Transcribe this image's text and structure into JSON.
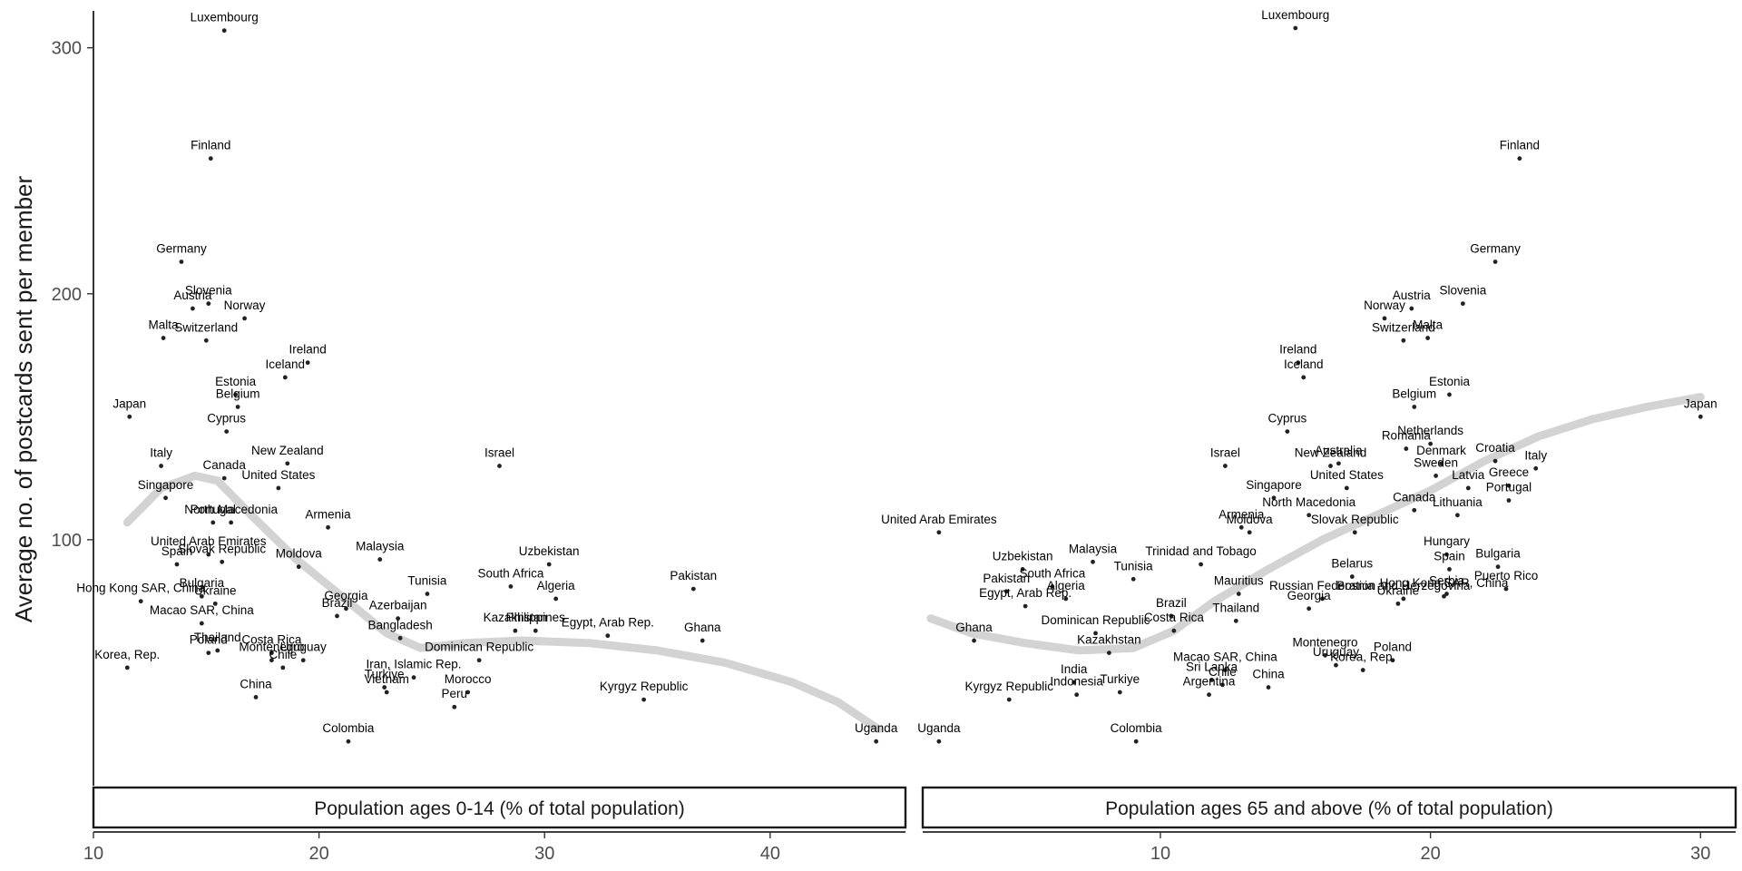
{
  "chart_data": {
    "type": "scatter",
    "ylabel": "Average no. of postcards sent per member",
    "ylim": [
      0,
      315
    ],
    "y_ticks": [
      100,
      200,
      300
    ],
    "smooth_color": "#d3d3d3",
    "panels": [
      {
        "strip": "Population ages 0-14 (% of total population)",
        "xlim": [
          10,
          46
        ],
        "x_ticks": [
          10,
          20,
          30,
          40
        ],
        "smooth": [
          [
            11.5,
            107
          ],
          [
            13,
            121
          ],
          [
            14.5,
            126
          ],
          [
            15.5,
            124
          ],
          [
            17,
            110
          ],
          [
            19,
            92
          ],
          [
            21,
            77
          ],
          [
            23,
            62
          ],
          [
            24.5,
            56
          ],
          [
            26.5,
            58
          ],
          [
            29,
            59
          ],
          [
            32,
            58
          ],
          [
            35,
            55
          ],
          [
            38,
            50
          ],
          [
            41,
            42
          ],
          [
            43,
            34
          ],
          [
            44.8,
            23
          ]
        ],
        "points": [
          {
            "label": "Luxembourg",
            "x": 15.8,
            "y": 307
          },
          {
            "label": "Finland",
            "x": 15.2,
            "y": 255
          },
          {
            "label": "Germany",
            "x": 13.9,
            "y": 213
          },
          {
            "label": "Slovenia",
            "x": 15.1,
            "y": 196
          },
          {
            "label": "Austria",
            "x": 14.4,
            "y": 194
          },
          {
            "label": "Norway",
            "x": 16.7,
            "y": 190
          },
          {
            "label": "Malta",
            "x": 13.1,
            "y": 182
          },
          {
            "label": "Switzerland",
            "x": 15.0,
            "y": 181
          },
          {
            "label": "Ireland",
            "x": 19.5,
            "y": 172
          },
          {
            "label": "Iceland",
            "x": 18.5,
            "y": 166
          },
          {
            "label": "Estonia",
            "x": 16.3,
            "y": 159
          },
          {
            "label": "Belgium",
            "x": 16.4,
            "y": 154
          },
          {
            "label": "Japan",
            "x": 11.6,
            "y": 150
          },
          {
            "label": "Cyprus",
            "x": 15.9,
            "y": 144
          },
          {
            "label": "Italy",
            "x": 13.0,
            "y": 130
          },
          {
            "label": "New Zealand",
            "x": 18.6,
            "y": 131
          },
          {
            "label": "Israel",
            "x": 28.0,
            "y": 130
          },
          {
            "label": "Canada",
            "x": 15.8,
            "y": 125
          },
          {
            "label": "United States",
            "x": 18.2,
            "y": 121
          },
          {
            "label": "Singapore",
            "x": 13.2,
            "y": 117
          },
          {
            "label": "Portugal",
            "x": 15.3,
            "y": 107
          },
          {
            "label": "North Macedonia",
            "x": 16.1,
            "y": 107
          },
          {
            "label": "Armenia",
            "x": 20.4,
            "y": 105
          },
          {
            "label": "United Arab Emirates",
            "x": 15.1,
            "y": 94
          },
          {
            "label": "Slovak Republic",
            "x": 15.7,
            "y": 91
          },
          {
            "label": "Spain",
            "x": 13.7,
            "y": 90
          },
          {
            "label": "Moldova",
            "x": 19.1,
            "y": 89
          },
          {
            "label": "Malaysia",
            "x": 22.7,
            "y": 92
          },
          {
            "label": "Uzbekistan",
            "x": 30.2,
            "y": 90
          },
          {
            "label": "Georgia",
            "x": 21.2,
            "y": 72
          },
          {
            "label": "Tunisia",
            "x": 24.8,
            "y": 78
          },
          {
            "label": "South Africa",
            "x": 28.5,
            "y": 81
          },
          {
            "label": "Hong Kong SAR, China",
            "x": 12.1,
            "y": 75
          },
          {
            "label": "Bulgaria",
            "x": 14.8,
            "y": 77
          },
          {
            "label": "Ukraine",
            "x": 15.4,
            "y": 74
          },
          {
            "label": "Brazil",
            "x": 20.8,
            "y": 69
          },
          {
            "label": "Algeria",
            "x": 30.5,
            "y": 76
          },
          {
            "label": "Azerbaijan",
            "x": 23.5,
            "y": 68
          },
          {
            "label": "Pakistan",
            "x": 36.6,
            "y": 80
          },
          {
            "label": "Macao SAR, China",
            "x": 14.8,
            "y": 66
          },
          {
            "label": "Philippines",
            "x": 29.6,
            "y": 63
          },
          {
            "label": "Bangladesh",
            "x": 23.6,
            "y": 60
          },
          {
            "label": "Kazakhstan",
            "x": 28.7,
            "y": 63
          },
          {
            "label": "Ghana",
            "x": 37.0,
            "y": 59
          },
          {
            "label": "Costa Rica",
            "x": 17.9,
            "y": 54
          },
          {
            "label": "Korea, Rep.",
            "x": 11.5,
            "y": 48
          },
          {
            "label": "Egypt, Arab Rep.",
            "x": 32.8,
            "y": 61
          },
          {
            "label": "Montenegro",
            "x": 17.9,
            "y": 51
          },
          {
            "label": "Iran, Islamic Rep.",
            "x": 24.2,
            "y": 44
          },
          {
            "label": "Dominican Republic",
            "x": 27.1,
            "y": 51
          },
          {
            "label": "Uruguay",
            "x": 19.3,
            "y": 51
          },
          {
            "label": "Poland",
            "x": 15.1,
            "y": 54
          },
          {
            "label": "Thailand",
            "x": 15.5,
            "y": 55
          },
          {
            "label": "Chile",
            "x": 18.4,
            "y": 48
          },
          {
            "label": "Vietnam",
            "x": 23.0,
            "y": 38
          },
          {
            "label": "China",
            "x": 17.2,
            "y": 36
          },
          {
            "label": "Turkiye",
            "x": 22.9,
            "y": 40
          },
          {
            "label": "Morocco",
            "x": 26.6,
            "y": 38
          },
          {
            "label": "Peru",
            "x": 26.0,
            "y": 32
          },
          {
            "label": "Kyrgyz Republic",
            "x": 34.4,
            "y": 35
          },
          {
            "label": "Colombia",
            "x": 21.3,
            "y": 18
          },
          {
            "label": "Uganda",
            "x": 44.7,
            "y": 18
          }
        ]
      },
      {
        "strip": "Population ages 65 and above (% of total population)",
        "xlim": [
          1.2,
          31.3
        ],
        "x_ticks": [
          10,
          20,
          30
        ],
        "smooth": [
          [
            1.5,
            68
          ],
          [
            3,
            62
          ],
          [
            5,
            58
          ],
          [
            7,
            55
          ],
          [
            9,
            56
          ],
          [
            10.5,
            63
          ],
          [
            12,
            75
          ],
          [
            14,
            88
          ],
          [
            16,
            100
          ],
          [
            18,
            110
          ],
          [
            20,
            120
          ],
          [
            22,
            132
          ],
          [
            24,
            142
          ],
          [
            26,
            149
          ],
          [
            28,
            154
          ],
          [
            30,
            158
          ]
        ],
        "points": [
          {
            "label": "Luxembourg",
            "x": 15.0,
            "y": 308
          },
          {
            "label": "Finland",
            "x": 23.3,
            "y": 255
          },
          {
            "label": "Germany",
            "x": 22.4,
            "y": 213
          },
          {
            "label": "Slovenia",
            "x": 21.2,
            "y": 196
          },
          {
            "label": "Austria",
            "x": 19.3,
            "y": 194
          },
          {
            "label": "Norway",
            "x": 18.3,
            "y": 190
          },
          {
            "label": "Switzerland",
            "x": 19.0,
            "y": 181
          },
          {
            "label": "Malta",
            "x": 19.9,
            "y": 182
          },
          {
            "label": "Ireland",
            "x": 15.1,
            "y": 172
          },
          {
            "label": "Iceland",
            "x": 15.3,
            "y": 166
          },
          {
            "label": "Estonia",
            "x": 20.7,
            "y": 159
          },
          {
            "label": "Belgium",
            "x": 19.4,
            "y": 154
          },
          {
            "label": "Japan",
            "x": 30.0,
            "y": 150
          },
          {
            "label": "Cyprus",
            "x": 14.7,
            "y": 144
          },
          {
            "label": "Netherlands",
            "x": 20.0,
            "y": 139
          },
          {
            "label": "Croatia",
            "x": 22.4,
            "y": 132
          },
          {
            "label": "Romania",
            "x": 19.1,
            "y": 137
          },
          {
            "label": "Israel",
            "x": 12.4,
            "y": 130
          },
          {
            "label": "Denmark",
            "x": 20.4,
            "y": 131
          },
          {
            "label": "Australia",
            "x": 16.6,
            "y": 131
          },
          {
            "label": "New Zealand",
            "x": 16.3,
            "y": 130
          },
          {
            "label": "Italy",
            "x": 23.9,
            "y": 129
          },
          {
            "label": "Sweden",
            "x": 20.2,
            "y": 126
          },
          {
            "label": "United States",
            "x": 16.9,
            "y": 121
          },
          {
            "label": "Singapore",
            "x": 14.2,
            "y": 117
          },
          {
            "label": "Greece",
            "x": 22.9,
            "y": 122
          },
          {
            "label": "Latvia",
            "x": 21.4,
            "y": 121
          },
          {
            "label": "Portugal",
            "x": 22.9,
            "y": 116
          },
          {
            "label": "Canada",
            "x": 19.4,
            "y": 112
          },
          {
            "label": "North Macedonia",
            "x": 15.5,
            "y": 110
          },
          {
            "label": "Lithuania",
            "x": 21.0,
            "y": 110
          },
          {
            "label": "Armenia",
            "x": 13.0,
            "y": 105
          },
          {
            "label": "United Arab Emirates",
            "x": 1.8,
            "y": 103
          },
          {
            "label": "Moldova",
            "x": 13.3,
            "y": 103
          },
          {
            "label": "Slovak Republic",
            "x": 17.2,
            "y": 103
          },
          {
            "label": "Hungary",
            "x": 20.6,
            "y": 94
          },
          {
            "label": "Trinidad and Tobago",
            "x": 11.5,
            "y": 90
          },
          {
            "label": "Malaysia",
            "x": 7.5,
            "y": 91
          },
          {
            "label": "Uzbekistan",
            "x": 4.9,
            "y": 88
          },
          {
            "label": "Bulgaria",
            "x": 22.5,
            "y": 89
          },
          {
            "label": "Belarus",
            "x": 17.1,
            "y": 85
          },
          {
            "label": "Spain",
            "x": 20.7,
            "y": 88
          },
          {
            "label": "Tunisia",
            "x": 9.0,
            "y": 84
          },
          {
            "label": "Puerto Rico",
            "x": 22.8,
            "y": 80
          },
          {
            "label": "Pakistan",
            "x": 4.3,
            "y": 79
          },
          {
            "label": "South Africa",
            "x": 6.0,
            "y": 81
          },
          {
            "label": "Mauritius",
            "x": 12.9,
            "y": 78
          },
          {
            "label": "Brazil",
            "x": 10.4,
            "y": 69
          },
          {
            "label": "Russian Federation",
            "x": 16.0,
            "y": 76
          },
          {
            "label": "Bosnia and Herzegovina",
            "x": 19.0,
            "y": 76
          },
          {
            "label": "Georgia",
            "x": 15.5,
            "y": 72
          },
          {
            "label": "Serbia",
            "x": 20.6,
            "y": 78
          },
          {
            "label": "Algeria",
            "x": 6.5,
            "y": 76
          },
          {
            "label": "Egypt, Arab Rep.",
            "x": 5.0,
            "y": 73
          },
          {
            "label": "Ukraine",
            "x": 18.8,
            "y": 74
          },
          {
            "label": "Thailand",
            "x": 12.8,
            "y": 67
          },
          {
            "label": "Costa Rica",
            "x": 10.5,
            "y": 63
          },
          {
            "label": "Dominican Republic",
            "x": 7.6,
            "y": 62
          },
          {
            "label": "Hong Kong SAR, China",
            "x": 20.5,
            "y": 77
          },
          {
            "label": "Kazakhstan",
            "x": 8.1,
            "y": 54
          },
          {
            "label": "Ghana",
            "x": 3.1,
            "y": 59
          },
          {
            "label": "Montenegro",
            "x": 16.1,
            "y": 53
          },
          {
            "label": "Macao SAR, China",
            "x": 12.4,
            "y": 47
          },
          {
            "label": "Chile",
            "x": 12.3,
            "y": 41
          },
          {
            "label": "Uruguay",
            "x": 16.5,
            "y": 49
          },
          {
            "label": "Poland",
            "x": 18.6,
            "y": 51
          },
          {
            "label": "Korea, Rep.",
            "x": 17.5,
            "y": 47
          },
          {
            "label": "India",
            "x": 6.8,
            "y": 42
          },
          {
            "label": "Sri Lanka",
            "x": 11.9,
            "y": 43
          },
          {
            "label": "China",
            "x": 14.0,
            "y": 40
          },
          {
            "label": "Indonesia",
            "x": 6.9,
            "y": 37
          },
          {
            "label": "Turkiye",
            "x": 8.5,
            "y": 38
          },
          {
            "label": "Argentina",
            "x": 11.8,
            "y": 37
          },
          {
            "label": "Kyrgyz Republic",
            "x": 4.4,
            "y": 35
          },
          {
            "label": "Colombia",
            "x": 9.1,
            "y": 18
          },
          {
            "label": "Uganda",
            "x": 1.8,
            "y": 18
          }
        ]
      }
    ]
  }
}
